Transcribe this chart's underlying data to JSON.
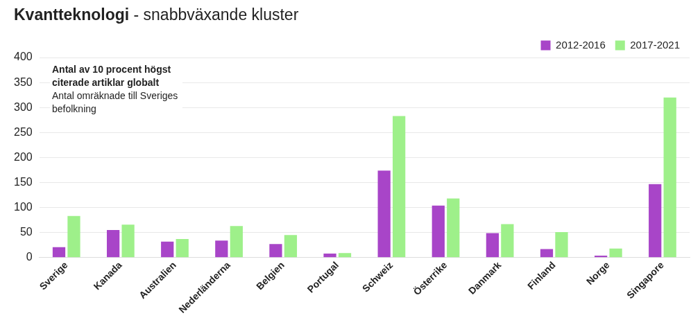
{
  "chart_data": {
    "type": "bar",
    "title": "Kvantteknologi",
    "subtitle": "- snabbväxande kluster",
    "annotations": [
      "Antal av 10 procent högst citerade artiklar globalt",
      "Antal omräknade till Sveriges befolkning"
    ],
    "categories": [
      "Sverige",
      "Kanada",
      "Australien",
      "Nederländerna",
      "Belgien",
      "Portugal",
      "Schweiz",
      "Österrike",
      "Danmark",
      "Finland",
      "Norge",
      "Singapore"
    ],
    "series": [
      {
        "name": "2012-2016",
        "color": "#a845c8",
        "values": [
          21,
          55,
          32,
          34,
          27,
          8,
          174,
          104,
          49,
          17,
          4,
          147
        ]
      },
      {
        "name": "2017-2021",
        "color": "#9ef08a",
        "values": [
          83,
          66,
          37,
          63,
          45,
          9,
          283,
          118,
          67,
          51,
          18,
          320
        ]
      }
    ],
    "ylim": [
      0,
      400
    ],
    "yticks": [
      0,
      50,
      100,
      150,
      200,
      250,
      300,
      350,
      400
    ],
    "grid": "y",
    "legend": "top right"
  }
}
